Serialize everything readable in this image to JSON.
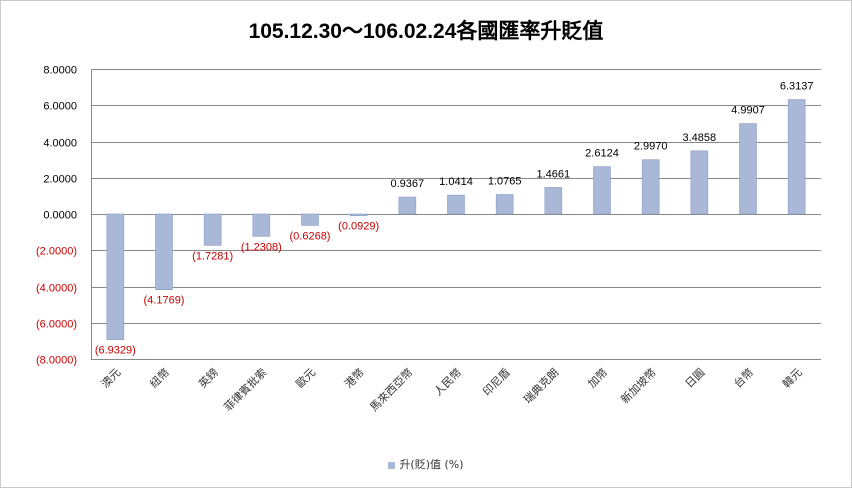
{
  "chart_data": {
    "type": "bar",
    "title": "105.12.30～106.02.24各國匯率升貶值",
    "categories": [
      "澳元",
      "紐幣",
      "英鎊",
      "菲律賓批索",
      "歐元",
      "港幣",
      "馬來西亞幣",
      "人民幣",
      "印尼盾",
      "瑞典克朗",
      "加幣",
      "新加坡幣",
      "日圓",
      "台幣",
      "韓元"
    ],
    "series": [
      {
        "name": "升(貶)值 (%)",
        "values": [
          -6.9329,
          -4.1769,
          -1.7281,
          -1.2308,
          -0.6268,
          -0.0929,
          0.9367,
          1.0414,
          1.0765,
          1.4661,
          2.6124,
          2.997,
          3.4858,
          4.9907,
          6.3137
        ],
        "labels": [
          "(6.9329)",
          "(4.1769)",
          "(1.7281)",
          "(1.2308)",
          "(0.6268)",
          "(0.0929)",
          "0.9367",
          "1.0414",
          "1.0765",
          "1.4661",
          "2.6124",
          "2.9970",
          "3.4858",
          "4.9907",
          "6.3137"
        ]
      }
    ],
    "y_ticks": [
      8,
      6,
      4,
      2,
      0,
      -2,
      -4,
      -6,
      -8
    ],
    "y_tick_labels": [
      "8.0000",
      "6.0000",
      "4.0000",
      "2.0000",
      "0.0000",
      "(2.0000)",
      "(4.0000)",
      "(6.0000)",
      "(8.0000)"
    ],
    "ylim": [
      -8,
      8
    ],
    "grid": true,
    "legend_position": "bottom",
    "colors": {
      "bar": "#a9b8d6",
      "bar_edge": "#8a9cc4",
      "positive_text": "#000000",
      "negative_text": "#cc0000",
      "grid": "#888888"
    }
  }
}
